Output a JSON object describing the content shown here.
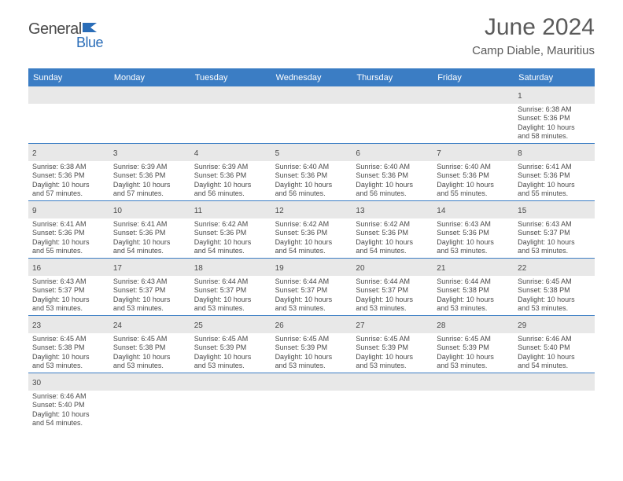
{
  "logo": {
    "text1": "General",
    "text2": "Blue"
  },
  "title": "June 2024",
  "subtitle": "Camp Diable, Mauritius",
  "colors": {
    "header_bg": "#3b7dc4",
    "daynum_bg": "#e8e8e8",
    "text": "#4a4a4a",
    "logo_blue": "#2a6db8"
  },
  "weekdays": [
    "Sunday",
    "Monday",
    "Tuesday",
    "Wednesday",
    "Thursday",
    "Friday",
    "Saturday"
  ],
  "weeks": [
    [
      {
        "day": null
      },
      {
        "day": null
      },
      {
        "day": null
      },
      {
        "day": null
      },
      {
        "day": null
      },
      {
        "day": null
      },
      {
        "day": "1",
        "sunrise": "Sunrise: 6:38 AM",
        "sunset": "Sunset: 5:36 PM",
        "daylight1": "Daylight: 10 hours",
        "daylight2": "and 58 minutes."
      }
    ],
    [
      {
        "day": "2",
        "sunrise": "Sunrise: 6:38 AM",
        "sunset": "Sunset: 5:36 PM",
        "daylight1": "Daylight: 10 hours",
        "daylight2": "and 57 minutes."
      },
      {
        "day": "3",
        "sunrise": "Sunrise: 6:39 AM",
        "sunset": "Sunset: 5:36 PM",
        "daylight1": "Daylight: 10 hours",
        "daylight2": "and 57 minutes."
      },
      {
        "day": "4",
        "sunrise": "Sunrise: 6:39 AM",
        "sunset": "Sunset: 5:36 PM",
        "daylight1": "Daylight: 10 hours",
        "daylight2": "and 56 minutes."
      },
      {
        "day": "5",
        "sunrise": "Sunrise: 6:40 AM",
        "sunset": "Sunset: 5:36 PM",
        "daylight1": "Daylight: 10 hours",
        "daylight2": "and 56 minutes."
      },
      {
        "day": "6",
        "sunrise": "Sunrise: 6:40 AM",
        "sunset": "Sunset: 5:36 PM",
        "daylight1": "Daylight: 10 hours",
        "daylight2": "and 56 minutes."
      },
      {
        "day": "7",
        "sunrise": "Sunrise: 6:40 AM",
        "sunset": "Sunset: 5:36 PM",
        "daylight1": "Daylight: 10 hours",
        "daylight2": "and 55 minutes."
      },
      {
        "day": "8",
        "sunrise": "Sunrise: 6:41 AM",
        "sunset": "Sunset: 5:36 PM",
        "daylight1": "Daylight: 10 hours",
        "daylight2": "and 55 minutes."
      }
    ],
    [
      {
        "day": "9",
        "sunrise": "Sunrise: 6:41 AM",
        "sunset": "Sunset: 5:36 PM",
        "daylight1": "Daylight: 10 hours",
        "daylight2": "and 55 minutes."
      },
      {
        "day": "10",
        "sunrise": "Sunrise: 6:41 AM",
        "sunset": "Sunset: 5:36 PM",
        "daylight1": "Daylight: 10 hours",
        "daylight2": "and 54 minutes."
      },
      {
        "day": "11",
        "sunrise": "Sunrise: 6:42 AM",
        "sunset": "Sunset: 5:36 PM",
        "daylight1": "Daylight: 10 hours",
        "daylight2": "and 54 minutes."
      },
      {
        "day": "12",
        "sunrise": "Sunrise: 6:42 AM",
        "sunset": "Sunset: 5:36 PM",
        "daylight1": "Daylight: 10 hours",
        "daylight2": "and 54 minutes."
      },
      {
        "day": "13",
        "sunrise": "Sunrise: 6:42 AM",
        "sunset": "Sunset: 5:36 PM",
        "daylight1": "Daylight: 10 hours",
        "daylight2": "and 54 minutes."
      },
      {
        "day": "14",
        "sunrise": "Sunrise: 6:43 AM",
        "sunset": "Sunset: 5:36 PM",
        "daylight1": "Daylight: 10 hours",
        "daylight2": "and 53 minutes."
      },
      {
        "day": "15",
        "sunrise": "Sunrise: 6:43 AM",
        "sunset": "Sunset: 5:37 PM",
        "daylight1": "Daylight: 10 hours",
        "daylight2": "and 53 minutes."
      }
    ],
    [
      {
        "day": "16",
        "sunrise": "Sunrise: 6:43 AM",
        "sunset": "Sunset: 5:37 PM",
        "daylight1": "Daylight: 10 hours",
        "daylight2": "and 53 minutes."
      },
      {
        "day": "17",
        "sunrise": "Sunrise: 6:43 AM",
        "sunset": "Sunset: 5:37 PM",
        "daylight1": "Daylight: 10 hours",
        "daylight2": "and 53 minutes."
      },
      {
        "day": "18",
        "sunrise": "Sunrise: 6:44 AM",
        "sunset": "Sunset: 5:37 PM",
        "daylight1": "Daylight: 10 hours",
        "daylight2": "and 53 minutes."
      },
      {
        "day": "19",
        "sunrise": "Sunrise: 6:44 AM",
        "sunset": "Sunset: 5:37 PM",
        "daylight1": "Daylight: 10 hours",
        "daylight2": "and 53 minutes."
      },
      {
        "day": "20",
        "sunrise": "Sunrise: 6:44 AM",
        "sunset": "Sunset: 5:37 PM",
        "daylight1": "Daylight: 10 hours",
        "daylight2": "and 53 minutes."
      },
      {
        "day": "21",
        "sunrise": "Sunrise: 6:44 AM",
        "sunset": "Sunset: 5:38 PM",
        "daylight1": "Daylight: 10 hours",
        "daylight2": "and 53 minutes."
      },
      {
        "day": "22",
        "sunrise": "Sunrise: 6:45 AM",
        "sunset": "Sunset: 5:38 PM",
        "daylight1": "Daylight: 10 hours",
        "daylight2": "and 53 minutes."
      }
    ],
    [
      {
        "day": "23",
        "sunrise": "Sunrise: 6:45 AM",
        "sunset": "Sunset: 5:38 PM",
        "daylight1": "Daylight: 10 hours",
        "daylight2": "and 53 minutes."
      },
      {
        "day": "24",
        "sunrise": "Sunrise: 6:45 AM",
        "sunset": "Sunset: 5:38 PM",
        "daylight1": "Daylight: 10 hours",
        "daylight2": "and 53 minutes."
      },
      {
        "day": "25",
        "sunrise": "Sunrise: 6:45 AM",
        "sunset": "Sunset: 5:39 PM",
        "daylight1": "Daylight: 10 hours",
        "daylight2": "and 53 minutes."
      },
      {
        "day": "26",
        "sunrise": "Sunrise: 6:45 AM",
        "sunset": "Sunset: 5:39 PM",
        "daylight1": "Daylight: 10 hours",
        "daylight2": "and 53 minutes."
      },
      {
        "day": "27",
        "sunrise": "Sunrise: 6:45 AM",
        "sunset": "Sunset: 5:39 PM",
        "daylight1": "Daylight: 10 hours",
        "daylight2": "and 53 minutes."
      },
      {
        "day": "28",
        "sunrise": "Sunrise: 6:45 AM",
        "sunset": "Sunset: 5:39 PM",
        "daylight1": "Daylight: 10 hours",
        "daylight2": "and 53 minutes."
      },
      {
        "day": "29",
        "sunrise": "Sunrise: 6:46 AM",
        "sunset": "Sunset: 5:40 PM",
        "daylight1": "Daylight: 10 hours",
        "daylight2": "and 54 minutes."
      }
    ],
    [
      {
        "day": "30",
        "sunrise": "Sunrise: 6:46 AM",
        "sunset": "Sunset: 5:40 PM",
        "daylight1": "Daylight: 10 hours",
        "daylight2": "and 54 minutes."
      },
      {
        "day": null
      },
      {
        "day": null
      },
      {
        "day": null
      },
      {
        "day": null
      },
      {
        "day": null
      },
      {
        "day": null
      }
    ]
  ]
}
